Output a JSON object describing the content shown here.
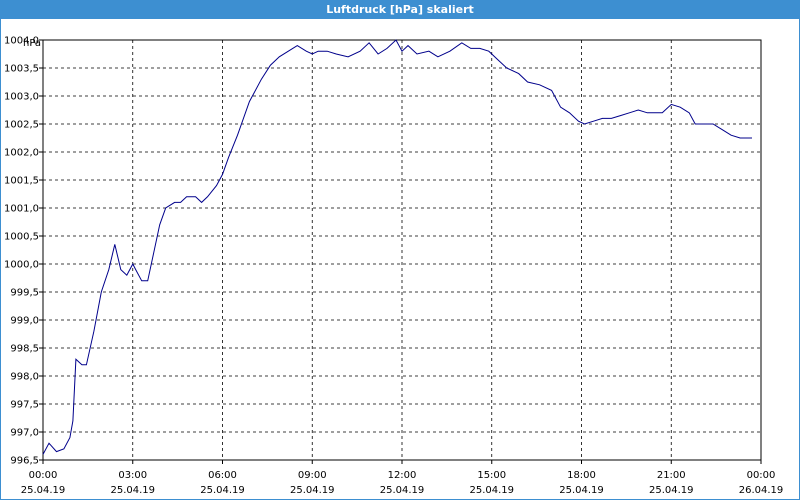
{
  "window": {
    "title": "Luftdruck [hPa] skaliert"
  },
  "chart_data": {
    "type": "line",
    "title": "Luftdruck [hPa] skaliert",
    "ylabel": "hPa",
    "xlabel": "",
    "ylim": [
      996.5,
      1004.0
    ],
    "xlim": [
      0,
      24
    ],
    "grid": true,
    "line_color": "#00008b",
    "y_ticks": [
      "996,5",
      "997,0",
      "997,5",
      "998,0",
      "998,5",
      "999,0",
      "999,5",
      "1000,0",
      "1000,5",
      "1001,0",
      "1001,5",
      "1002,0",
      "1002,5",
      "1003,0",
      "1003,5",
      "1004,0"
    ],
    "x_ticks": [
      {
        "time": "00:00",
        "date": "25.04.19"
      },
      {
        "time": "03:00",
        "date": "25.04.19"
      },
      {
        "time": "06:00",
        "date": "25.04.19"
      },
      {
        "time": "09:00",
        "date": "25.04.19"
      },
      {
        "time": "12:00",
        "date": "25.04.19"
      },
      {
        "time": "15:00",
        "date": "25.04.19"
      },
      {
        "time": "18:00",
        "date": "25.04.19"
      },
      {
        "time": "21:00",
        "date": "25.04.19"
      },
      {
        "time": "00:00",
        "date": "26.04.19"
      }
    ],
    "series": [
      {
        "x": [
          0,
          0.2,
          0.45,
          0.7,
          0.9,
          1.0,
          1.1,
          1.3,
          1.45,
          1.7,
          1.95,
          2.2,
          2.4,
          2.6,
          2.8,
          3.0,
          3.1,
          3.3,
          3.5,
          3.7,
          3.9,
          4.1,
          4.4,
          4.6,
          4.8,
          5.1,
          5.3,
          5.5,
          5.8,
          6.0,
          6.2,
          6.5,
          6.9,
          7.3,
          7.6,
          7.9,
          8.2,
          8.5,
          8.8,
          9.0,
          9.2,
          9.5,
          9.8,
          10.2,
          10.6,
          10.9,
          11.2,
          11.5,
          11.8,
          12.0,
          12.2,
          12.5,
          12.9,
          13.2,
          13.6,
          14.0,
          14.3,
          14.6,
          14.9,
          15.2,
          15.5,
          15.9,
          16.2,
          16.6,
          17.0,
          17.3,
          17.6,
          17.9,
          18.1,
          18.4,
          18.7,
          19.0,
          19.3,
          19.6,
          19.9,
          20.2,
          20.4,
          20.7,
          21.0,
          21.3,
          21.6,
          21.8,
          22.1,
          22.4,
          22.7,
          23.0,
          23.3,
          23.7
        ],
        "y": [
          996.6,
          996.8,
          996.65,
          996.7,
          996.9,
          997.2,
          998.3,
          998.2,
          998.2,
          998.8,
          999.5,
          999.9,
          1000.35,
          999.9,
          999.8,
          1000.0,
          999.9,
          999.7,
          999.7,
          1000.2,
          1000.7,
          1001.0,
          1001.1,
          1001.1,
          1001.2,
          1001.2,
          1001.1,
          1001.2,
          1001.4,
          1001.6,
          1001.9,
          1002.3,
          1002.9,
          1003.3,
          1003.55,
          1003.7,
          1003.8,
          1003.9,
          1003.8,
          1003.75,
          1003.8,
          1003.8,
          1003.75,
          1003.7,
          1003.8,
          1003.95,
          1003.75,
          1003.85,
          1004.0,
          1003.8,
          1003.9,
          1003.75,
          1003.8,
          1003.7,
          1003.8,
          1003.95,
          1003.85,
          1003.85,
          1003.8,
          1003.65,
          1003.5,
          1003.4,
          1003.25,
          1003.2,
          1003.1,
          1002.8,
          1002.7,
          1002.55,
          1002.5,
          1002.55,
          1002.6,
          1002.6,
          1002.65,
          1002.7,
          1002.75,
          1002.7,
          1002.7,
          1002.7,
          1002.85,
          1002.8,
          1002.7,
          1002.5,
          1002.5,
          1002.5,
          1002.4,
          1002.3,
          1002.25,
          1002.25
        ]
      }
    ]
  }
}
